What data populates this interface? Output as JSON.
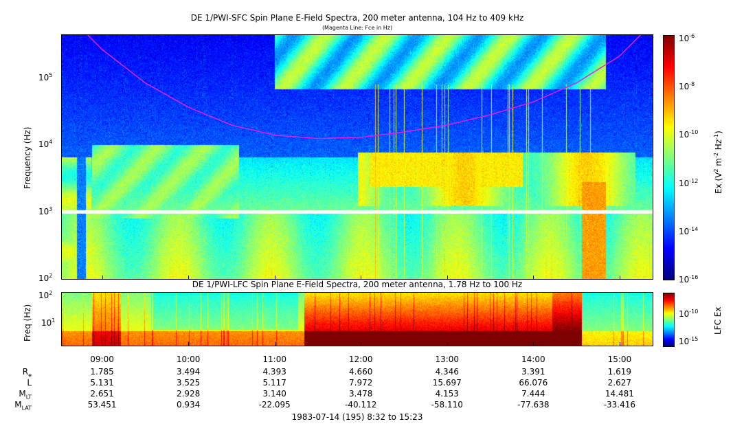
{
  "chart_data": [
    {
      "type": "heatmap",
      "title": "DE 1/PWI-SFC  Spin Plane E-Field Spectra, 200 meter antenna, 104 Hz to 409 kHz",
      "subtitle": "(Magenta Line: Fce in Hz)",
      "ylabel": "Frequency (Hz)",
      "yscale": "log",
      "ylim": [
        100,
        409000
      ],
      "y_ticks": [
        "10^2",
        "10^3",
        "10^4",
        "10^5"
      ],
      "colorbar": {
        "label": "Ex (V^2 m^-2 Hz^-1)",
        "scale": "log",
        "range": [
          1e-16,
          1e-06
        ],
        "ticks": [
          "10^-6",
          "10^-8",
          "10^-10",
          "10^-12",
          "10^-14",
          "10^-16"
        ]
      },
      "overlay_line": {
        "name": "Fce",
        "color": "#e020e0",
        "points": [
          {
            "time": "08:32",
            "hz": 1000000
          },
          {
            "time": "09:00",
            "hz": 250000
          },
          {
            "time": "09:30",
            "hz": 80000
          },
          {
            "time": "10:00",
            "hz": 35000
          },
          {
            "time": "10:30",
            "hz": 19000
          },
          {
            "time": "11:00",
            "hz": 13500
          },
          {
            "time": "11:30",
            "hz": 12000
          },
          {
            "time": "12:00",
            "hz": 12500
          },
          {
            "time": "12:30",
            "hz": 15000
          },
          {
            "time": "13:00",
            "hz": 19000
          },
          {
            "time": "13:30",
            "hz": 27000
          },
          {
            "time": "14:00",
            "hz": 42000
          },
          {
            "time": "14:30",
            "hz": 80000
          },
          {
            "time": "15:00",
            "hz": 200000
          },
          {
            "time": "15:15",
            "hz": 420000
          }
        ]
      },
      "data_gap_hz": 1000
    },
    {
      "type": "heatmap",
      "title": "DE 1/PWI-LFC  Spin Plane E-Field Spectra, 200 meter antenna, 1.78 Hz to 100 Hz",
      "ylabel": "Freq (Hz)",
      "yscale": "log",
      "ylim": [
        1.78,
        100
      ],
      "y_ticks": [
        "10^2",
        "10^1"
      ],
      "colorbar": {
        "label": "LFC Ex",
        "scale": "log",
        "ticks": [
          "10^-10",
          "10^-15"
        ]
      }
    }
  ],
  "x_axis": {
    "tick_labels": [
      "09:00",
      "10:00",
      "11:00",
      "12:00",
      "13:00",
      "14:00",
      "15:00"
    ],
    "caption": "1983-07-14 (195) 8:32 to 15:23"
  },
  "ephemeris": {
    "rows": [
      {
        "label": "R",
        "sub": "e",
        "values": [
          "1.785",
          "3.494",
          "4.393",
          "4.660",
          "4.346",
          "3.391",
          "1.619"
        ]
      },
      {
        "label": "L",
        "sub": "",
        "values": [
          "5.131",
          "3.525",
          "5.117",
          "7.972",
          "15.697",
          "66.076",
          "2.627"
        ]
      },
      {
        "label": "M",
        "sub": "LT",
        "values": [
          "2.651",
          "2.928",
          "3.140",
          "3.478",
          "4.153",
          "7.444",
          "14.481"
        ]
      },
      {
        "label": "M",
        "sub": "LAT",
        "values": [
          "53.451",
          "0.934",
          "-22.095",
          "-40.112",
          "-58.110",
          "-77.638",
          "-33.416"
        ]
      }
    ]
  }
}
